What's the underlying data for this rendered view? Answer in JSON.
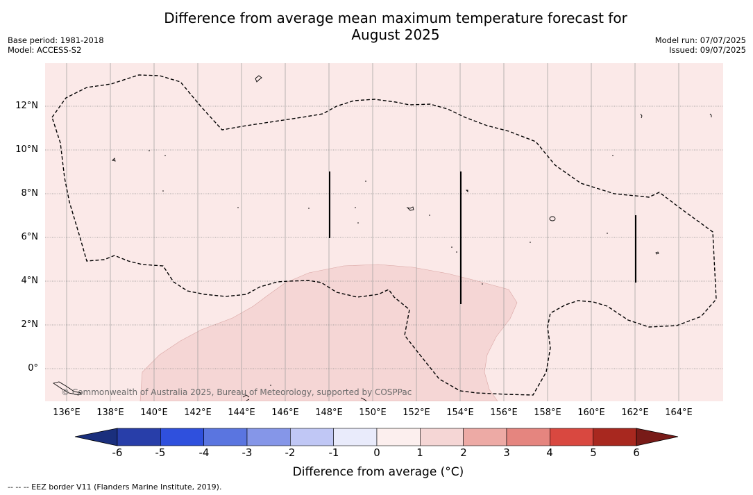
{
  "title_line1": "Difference from average mean maximum temperature forecast for",
  "title_line2": "August 2025",
  "base_period": "Base period: 1981-2018",
  "model": "Model: ACCESS-S2",
  "model_run": "Model run: 07/07/2025",
  "issued": "Issued: 09/07/2025",
  "copyright": "© Commonwealth of Australia 2025, Bureau of Meteorology, supported by COSPPac",
  "footnote": "--  --  -- EEZ border V11 (Flanders Marine Institute, 2019).",
  "colorbar_label": "Difference from average (°C)",
  "map_data": {
    "lat_labels": [
      "12°N",
      "10°N",
      "8°N",
      "6°N",
      "4°N",
      "2°N",
      "0°"
    ],
    "lon_labels": [
      "136°E",
      "138°E",
      "140°E",
      "142°E",
      "144°E",
      "146°E",
      "148°E",
      "150°E",
      "152°E",
      "154°E",
      "156°E",
      "158°E",
      "160°E",
      "162°E",
      "164°E"
    ],
    "colorbar_ticks": [
      "-6",
      "-5",
      "-4",
      "-3",
      "-2",
      "-1",
      "0",
      "1",
      "2",
      "3",
      "4",
      "5",
      "6"
    ],
    "colorbar_colors": [
      "#283ea9",
      "#2f50dd",
      "#5a75e0",
      "#8596e8",
      "#c0c7f5",
      "#e9ebfb",
      "#fcefee",
      "#f5d6d5",
      "#edaaa5",
      "#e5857f",
      "#d94840",
      "#a8281f"
    ],
    "colorbar_extend_low": "#1a2f7d",
    "colorbar_extend_high": "#781b18",
    "background_anomaly_color": "#fbe9e8",
    "warm_region_color": "#f5d6d5"
  }
}
